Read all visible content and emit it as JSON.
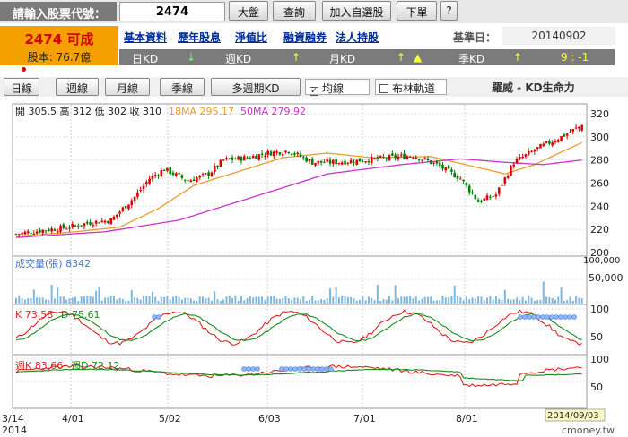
{
  "header": {
    "code_label": "請輸入股票代號：",
    "code_value": "2474",
    "buttons": [
      "大盤",
      "查詢",
      "加入自選股",
      "下單",
      "?"
    ]
  },
  "stock": {
    "name": "2474 可成",
    "capital": "股本: 76.7億"
  },
  "links": [
    "基本資料",
    "歷年股息",
    "淨值比",
    "融資融券",
    "法人持股"
  ],
  "base_date_label": "基準日：",
  "base_date": "20140902",
  "kd_bar": {
    "day": "日KD",
    "week": "週KD",
    "month": "月KD",
    "season": "季KD",
    "nums": "9 : -1",
    "day_arrow": "↓",
    "week_arrow": "↑",
    "month_arrow": "↑",
    "month_tri": "▲",
    "season_arrow": "↑"
  },
  "tabs": [
    "日線",
    "週線",
    "月線",
    "季線",
    "多週期KD"
  ],
  "checks": [
    {
      "label": "均線",
      "checked": true
    },
    {
      "label": "布林軌道",
      "checked": false
    }
  ],
  "indicator_title": "羅威 - KD生命力",
  "chart": {
    "ohlc_text": "開 305.5 高 312 低 302 收 310",
    "ma18": "18MA 295.17",
    "ma50": "50MA 279.92",
    "volume_label": "成交量(張) 8342",
    "k_text": "K 73.58",
    "d_text": "D 75.61",
    "wk_text": "週K 83.66",
    "wd_text": "週D 72.12",
    "price_ticks": [
      "320",
      "300",
      "280",
      "260",
      "240",
      "220",
      "200"
    ],
    "vol_ticks": [
      "100,000",
      "50,000"
    ],
    "kd_ticks": [
      "100",
      "50"
    ],
    "wkd_ticks": [
      "100",
      "50"
    ],
    "x_labels": [
      "3/14",
      "4/01",
      "5/02",
      "6/03",
      "7/01",
      "8/01"
    ],
    "x_year": "2014",
    "end_date": "2014/09/03",
    "watermark": "cmoney.tw"
  },
  "colors": {
    "up": "#e00000",
    "down": "#008000",
    "ma18": "#ee9a2a",
    "ma50": "#cc33cc",
    "volume": "#7fb8df",
    "k": "#d22",
    "d": "#1a8a1a",
    "dot": "#8bb6ff"
  },
  "chart_data": {
    "type": "candlestick",
    "x_range": [
      "2014-03-14",
      "2014-09-03"
    ],
    "price_ylim": [
      200,
      325
    ],
    "last": {
      "open": 305.5,
      "high": 312,
      "low": 302,
      "close": 310
    },
    "ma18_last": 295.17,
    "ma50_last": 279.92,
    "close_keyframes": [
      [
        0,
        216
      ],
      [
        8,
        219
      ],
      [
        18,
        222
      ],
      [
        25,
        226
      ],
      [
        32,
        228
      ],
      [
        40,
        248
      ],
      [
        45,
        264
      ],
      [
        50,
        272
      ],
      [
        58,
        262
      ],
      [
        65,
        268
      ],
      [
        70,
        280
      ],
      [
        78,
        282
      ],
      [
        85,
        286
      ],
      [
        92,
        288
      ],
      [
        100,
        278
      ],
      [
        108,
        278
      ],
      [
        118,
        280
      ],
      [
        126,
        282
      ],
      [
        134,
        284
      ],
      [
        142,
        276
      ],
      [
        150,
        264
      ],
      [
        156,
        244
      ],
      [
        162,
        250
      ],
      [
        168,
        278
      ],
      [
        176,
        290
      ],
      [
        184,
        300
      ],
      [
        191,
        310
      ]
    ],
    "ma18_keyframes": [
      [
        0,
        214
      ],
      [
        20,
        218
      ],
      [
        35,
        222
      ],
      [
        48,
        238
      ],
      [
        60,
        258
      ],
      [
        75,
        270
      ],
      [
        90,
        282
      ],
      [
        105,
        286
      ],
      [
        120,
        282
      ],
      [
        140,
        283
      ],
      [
        155,
        274
      ],
      [
        165,
        268
      ],
      [
        175,
        276
      ],
      [
        185,
        288
      ],
      [
        191,
        295
      ]
    ],
    "ma50_keyframes": [
      [
        0,
        213
      ],
      [
        30,
        218
      ],
      [
        55,
        228
      ],
      [
        80,
        248
      ],
      [
        105,
        268
      ],
      [
        130,
        276
      ],
      [
        150,
        281
      ],
      [
        165,
        278
      ],
      [
        178,
        276
      ],
      [
        191,
        280
      ]
    ],
    "k_last": 73.58,
    "d_last": 75.61,
    "wk_last": 83.66,
    "wd_last": 72.12,
    "volume_last": 8342
  }
}
